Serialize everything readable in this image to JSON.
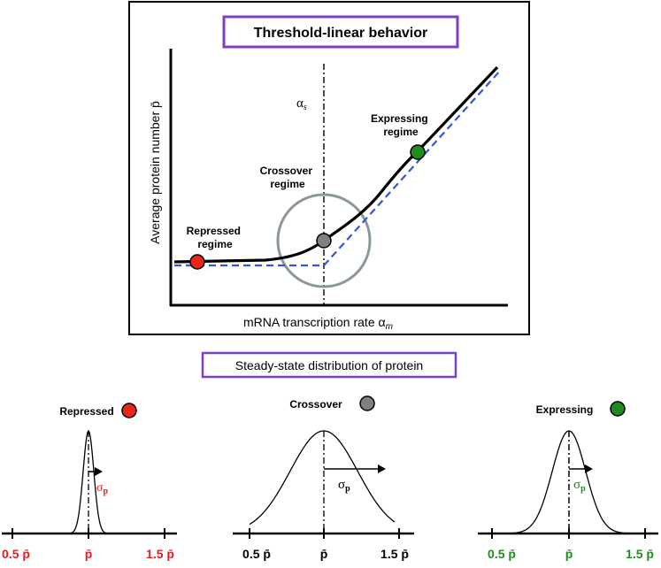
{
  "top_panel": {
    "title": "Threshold-linear behavior",
    "y_axis_label": "Average protein number p̄",
    "x_axis_label": "mRNA transcription rate α",
    "x_axis_label_sub": "m",
    "threshold_label": "α",
    "threshold_label_sub": "s",
    "regimes": {
      "repressed": {
        "line1": "Repressed",
        "line2": "regime",
        "color": "#e8261a"
      },
      "crossover": {
        "line1": "Crossover",
        "line2": "regime",
        "color": "#808080"
      },
      "expressing": {
        "line1": "Expressing",
        "line2": "regime",
        "color": "#1e8c1e"
      }
    },
    "colors": {
      "curve": "#000000",
      "asymptote": "#3355dd",
      "circle": "#8c9898",
      "title_border": "#7b3fc4"
    }
  },
  "bottom_panel": {
    "title": "Steady-state distribution of protein",
    "sigma": "σ",
    "sigma_sub": "p",
    "distributions": [
      {
        "id": "repressed",
        "label": "Repressed",
        "dot_color": "#e8261a",
        "tick_color": "#e02020",
        "ticks": [
          "0.5 p̄",
          "p̄",
          "1.5 p̄"
        ],
        "relative_width": 0.07
      },
      {
        "id": "crossover",
        "label": "Crossover",
        "dot_color": "#808080",
        "tick_color": "#000000",
        "ticks": [
          "0.5 p̄",
          "p̄",
          "1.5 p̄"
        ],
        "relative_width": 0.45
      },
      {
        "id": "expressing",
        "label": "Expressing",
        "dot_color": "#1e8c1e",
        "tick_color": "#1e8c1e",
        "ticks": [
          "0.5 p̄",
          "p̄",
          "1.5 p̄"
        ],
        "relative_width": 0.22
      }
    ]
  }
}
